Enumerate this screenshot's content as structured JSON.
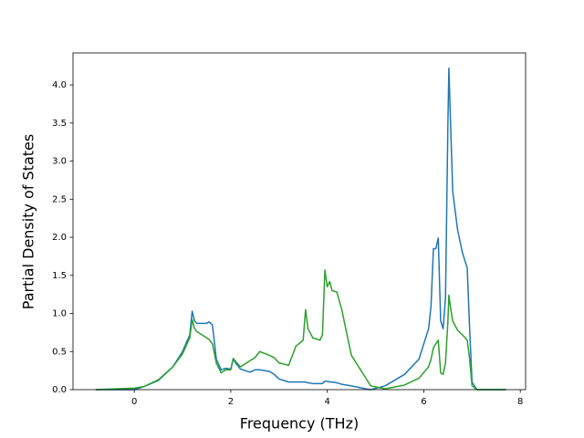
{
  "chart_data": {
    "type": "line",
    "xlabel": "Frequency (THz)",
    "ylabel": "Partial Density of States",
    "x": [
      -0.8,
      0,
      0.2,
      0.5,
      0.8,
      1.0,
      1.15,
      1.2,
      1.25,
      1.3,
      1.5,
      1.55,
      1.62,
      1.7,
      1.8,
      1.9,
      2.0,
      2.05,
      2.1,
      2.2,
      2.4,
      2.5,
      2.6,
      2.8,
      2.9,
      3.0,
      3.2,
      3.35,
      3.5,
      3.55,
      3.6,
      3.7,
      3.85,
      3.9,
      3.95,
      4.0,
      4.05,
      4.1,
      4.2,
      4.3,
      4.5,
      4.8,
      4.9,
      5.2,
      5.6,
      5.9,
      6.1,
      6.15,
      6.2,
      6.25,
      6.3,
      6.35,
      6.4,
      6.45,
      6.5,
      6.52,
      6.55,
      6.6,
      6.7,
      6.8,
      6.9,
      6.95,
      7.0,
      7.1,
      7.7
    ],
    "series": [
      {
        "color": "#1f77b4",
        "values": [
          0,
          0,
          0.04,
          0.12,
          0.3,
          0.5,
          0.72,
          1.03,
          0.9,
          0.87,
          0.87,
          0.89,
          0.85,
          0.4,
          0.26,
          0.28,
          0.27,
          0.4,
          0.35,
          0.27,
          0.23,
          0.26,
          0.26,
          0.24,
          0.2,
          0.14,
          0.1,
          0.1,
          0.1,
          0.1,
          0.09,
          0.08,
          0.08,
          0.08,
          0.11,
          0.11,
          0.1,
          0.1,
          0.09,
          0.07,
          0.05,
          0.01,
          0,
          0.05,
          0.2,
          0.4,
          0.8,
          1.1,
          1.85,
          1.85,
          1.99,
          0.9,
          0.8,
          1.2,
          3.5,
          4.22,
          3.6,
          2.6,
          2.1,
          1.8,
          1.6,
          0.8,
          0.1,
          0,
          0
        ]
      },
      {
        "color": "#2ca02c",
        "values": [
          0,
          0.02,
          0.04,
          0.13,
          0.3,
          0.47,
          0.68,
          0.92,
          0.8,
          0.76,
          0.68,
          0.66,
          0.6,
          0.35,
          0.22,
          0.26,
          0.26,
          0.41,
          0.37,
          0.3,
          0.38,
          0.42,
          0.5,
          0.45,
          0.42,
          0.35,
          0.32,
          0.57,
          0.65,
          1.05,
          0.8,
          0.68,
          0.65,
          0.72,
          1.57,
          1.35,
          1.42,
          1.3,
          1.28,
          1.05,
          0.45,
          0.15,
          0.05,
          0.01,
          0.06,
          0.15,
          0.3,
          0.4,
          0.55,
          0.6,
          0.65,
          0.22,
          0.2,
          0.35,
          0.9,
          1.24,
          1.1,
          0.9,
          0.78,
          0.72,
          0.65,
          0.4,
          0.05,
          0,
          0
        ]
      }
    ],
    "xlim": [
      -1.27,
      8.11
    ],
    "ylim": [
      0,
      4.42
    ],
    "xticks": [
      0,
      2,
      4,
      6,
      8
    ],
    "yticks": [
      {
        "value": 0,
        "label": "0.0"
      },
      0.5,
      {
        "value": 1,
        "label": "1.0"
      },
      1.5,
      {
        "value": 2,
        "label": "2.0"
      },
      2.5,
      {
        "value": 3,
        "label": "3.0"
      },
      3.5,
      {
        "value": 4,
        "label": "4.0"
      }
    ],
    "grid": false
  }
}
